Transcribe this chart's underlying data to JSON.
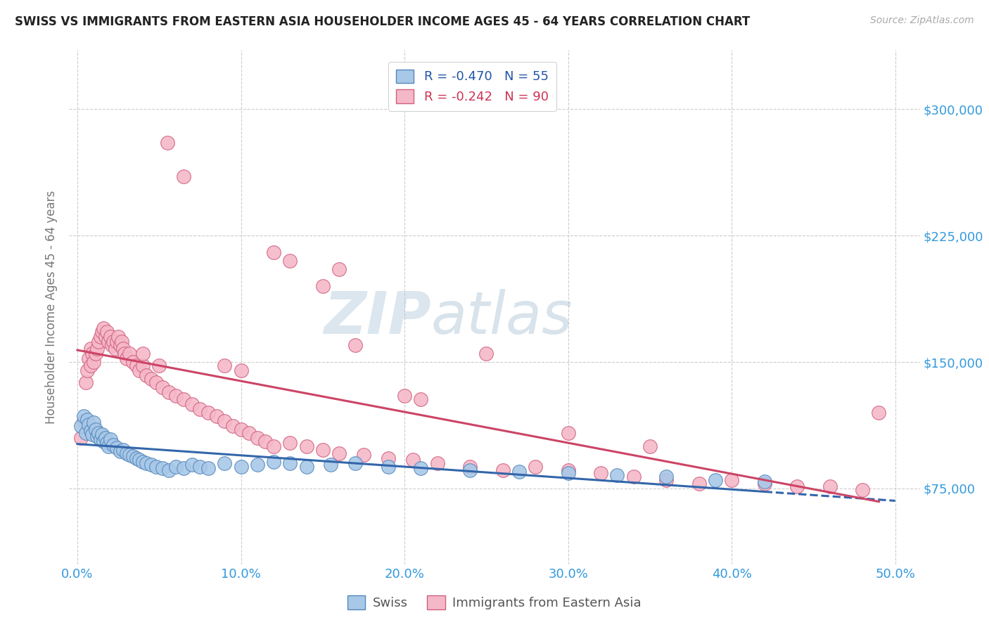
{
  "title": "SWISS VS IMMIGRANTS FROM EASTERN ASIA HOUSEHOLDER INCOME AGES 45 - 64 YEARS CORRELATION CHART",
  "source": "Source: ZipAtlas.com",
  "xlabel_ticks": [
    "0.0%",
    "10.0%",
    "20.0%",
    "30.0%",
    "40.0%",
    "50.0%"
  ],
  "xlabel_vals": [
    0.0,
    0.1,
    0.2,
    0.3,
    0.4,
    0.5
  ],
  "ylabel_ticks": [
    "$75,000",
    "$150,000",
    "$225,000",
    "$300,000"
  ],
  "ylabel_vals": [
    75000,
    150000,
    225000,
    300000
  ],
  "xlim": [
    -0.005,
    0.515
  ],
  "ylim": [
    30000,
    335000
  ],
  "ylabel": "Householder Income Ages 45 - 64 years",
  "legend_label1": "Swiss",
  "legend_label2": "Immigrants from Eastern Asia",
  "R1": -0.47,
  "N1": 55,
  "R2": -0.242,
  "N2": 90,
  "color_swiss_face": "#a8c8e8",
  "color_swiss_edge": "#5588bb",
  "color_immig_face": "#f5b8c8",
  "color_immig_edge": "#d06080",
  "color_line_swiss": "#3366aa",
  "color_line_immig": "#cc4466",
  "title_color": "#222222",
  "axis_label_color": "#3399dd",
  "background_color": "#ffffff",
  "grid_color": "#cccccc",
  "swiss_x": [
    0.002,
    0.004,
    0.005,
    0.006,
    0.007,
    0.008,
    0.009,
    0.01,
    0.011,
    0.012,
    0.013,
    0.014,
    0.015,
    0.016,
    0.017,
    0.018,
    0.019,
    0.02,
    0.022,
    0.024,
    0.026,
    0.028,
    0.03,
    0.032,
    0.034,
    0.036,
    0.038,
    0.04,
    0.042,
    0.045,
    0.048,
    0.052,
    0.056,
    0.06,
    0.065,
    0.07,
    0.075,
    0.08,
    0.09,
    0.1,
    0.11,
    0.12,
    0.13,
    0.14,
    0.155,
    0.17,
    0.19,
    0.21,
    0.24,
    0.27,
    0.3,
    0.33,
    0.36,
    0.39,
    0.42
  ],
  "swiss_y": [
    112000,
    118000,
    108000,
    116000,
    113000,
    109000,
    107000,
    114000,
    110000,
    106000,
    108000,
    104000,
    107000,
    103000,
    105000,
    102000,
    100000,
    104000,
    101000,
    99000,
    97000,
    98000,
    96000,
    95000,
    94000,
    93000,
    92000,
    91000,
    90000,
    89000,
    88000,
    87000,
    86000,
    88000,
    87000,
    89000,
    88000,
    87000,
    90000,
    88000,
    89000,
    91000,
    90000,
    88000,
    89000,
    90000,
    88000,
    87000,
    86000,
    85000,
    84000,
    83000,
    82000,
    80000,
    79000
  ],
  "immig_x": [
    0.002,
    0.004,
    0.005,
    0.006,
    0.007,
    0.008,
    0.008,
    0.009,
    0.01,
    0.011,
    0.012,
    0.013,
    0.014,
    0.015,
    0.016,
    0.017,
    0.018,
    0.019,
    0.02,
    0.021,
    0.022,
    0.023,
    0.024,
    0.025,
    0.026,
    0.027,
    0.028,
    0.029,
    0.03,
    0.032,
    0.034,
    0.036,
    0.038,
    0.04,
    0.042,
    0.045,
    0.048,
    0.052,
    0.056,
    0.06,
    0.065,
    0.07,
    0.075,
    0.08,
    0.085,
    0.09,
    0.095,
    0.1,
    0.105,
    0.11,
    0.115,
    0.12,
    0.13,
    0.14,
    0.15,
    0.16,
    0.175,
    0.19,
    0.205,
    0.22,
    0.24,
    0.26,
    0.28,
    0.3,
    0.32,
    0.34,
    0.36,
    0.38,
    0.4,
    0.42,
    0.44,
    0.46,
    0.48,
    0.49,
    0.12,
    0.13,
    0.25,
    0.15,
    0.16,
    0.17,
    0.09,
    0.1,
    0.2,
    0.21,
    0.055,
    0.065,
    0.3,
    0.35,
    0.04,
    0.05
  ],
  "immig_y": [
    105000,
    115000,
    138000,
    145000,
    152000,
    148000,
    158000,
    155000,
    150000,
    155000,
    158000,
    162000,
    165000,
    168000,
    170000,
    165000,
    168000,
    162000,
    165000,
    160000,
    162000,
    158000,
    162000,
    165000,
    160000,
    162000,
    158000,
    155000,
    152000,
    155000,
    150000,
    148000,
    145000,
    148000,
    142000,
    140000,
    138000,
    135000,
    132000,
    130000,
    128000,
    125000,
    122000,
    120000,
    118000,
    115000,
    112000,
    110000,
    108000,
    105000,
    103000,
    100000,
    102000,
    100000,
    98000,
    96000,
    95000,
    93000,
    92000,
    90000,
    88000,
    86000,
    88000,
    86000,
    84000,
    82000,
    80000,
    78000,
    80000,
    78000,
    76000,
    76000,
    74000,
    120000,
    215000,
    210000,
    155000,
    195000,
    205000,
    160000,
    148000,
    145000,
    130000,
    128000,
    280000,
    260000,
    108000,
    100000,
    155000,
    148000
  ]
}
